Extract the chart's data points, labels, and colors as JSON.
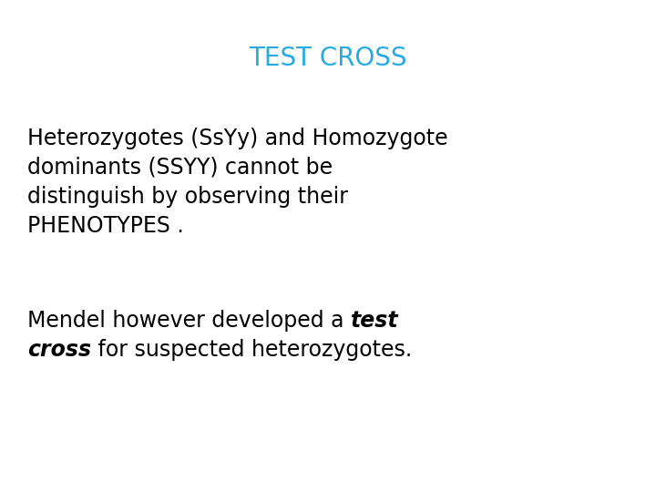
{
  "title": "TEST CROSS",
  "title_color": "#29ABE2",
  "title_fontsize": 20,
  "background_color": "#ffffff",
  "p1_line1": "Heterozygotes (SsYy) and Homozygote",
  "p1_line2": "dominants (SSYY) cannot be",
  "p1_line3": "distinguish by observing their",
  "p1_line4": "PHENOTYPES .",
  "p2_prefix": "Mendel however developed a ",
  "p2_bold1": "test",
  "p2_bold2": "cross",
  "p2_suffix": " for suspected heterozygotes.",
  "body_fontsize": 17,
  "body_color": "#000000",
  "fig_width": 7.2,
  "fig_height": 5.4,
  "dpi": 100
}
